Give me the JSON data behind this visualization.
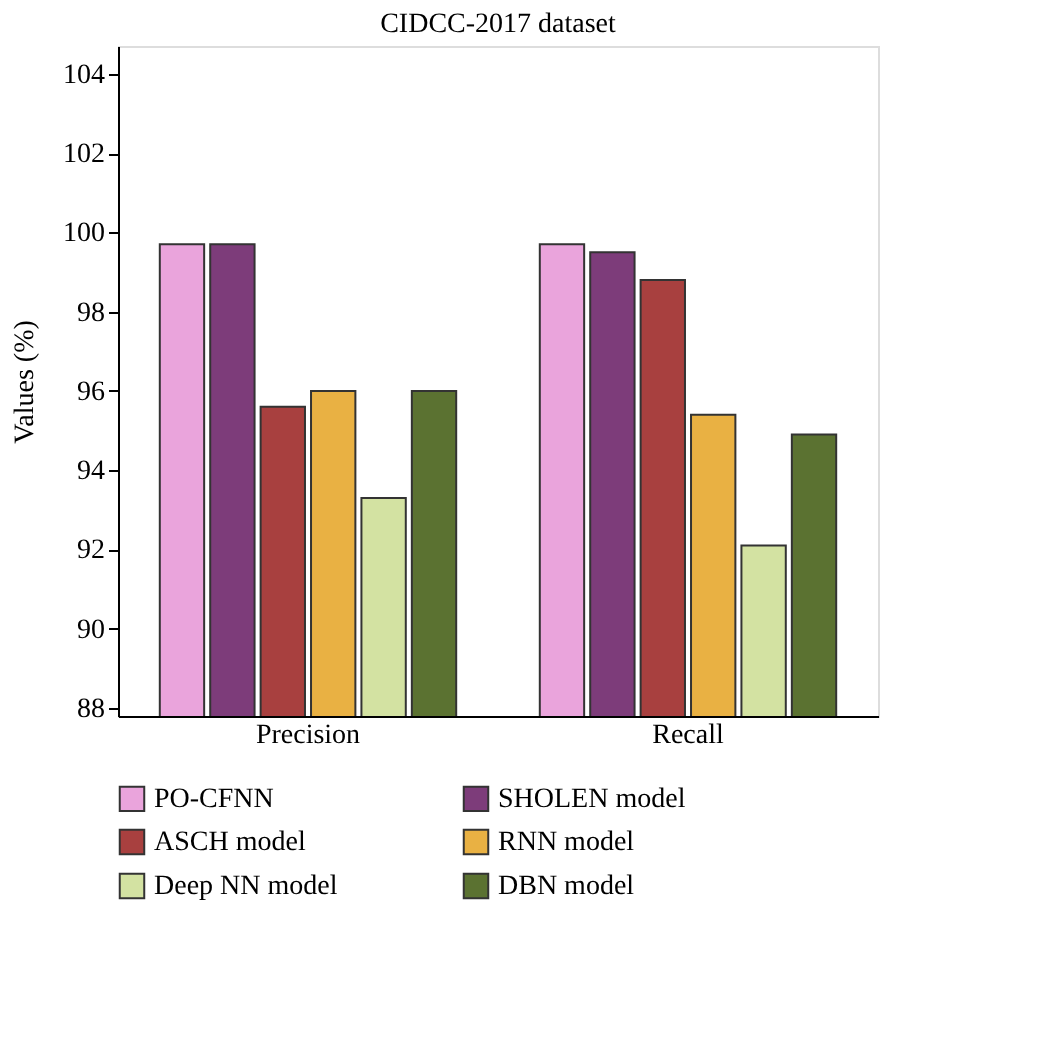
{
  "chart_data": {
    "type": "bar",
    "title": "CIDCC-2017 dataset",
    "ylabel": "Values (%)",
    "categories": [
      "Precision",
      "Recall"
    ],
    "series": [
      {
        "name": "PO-CFNN",
        "color": "#eaa4dc",
        "values": [
          99.7,
          99.7
        ]
      },
      {
        "name": "SHOLEN model",
        "color": "#7d3c7a",
        "values": [
          99.7,
          99.5
        ]
      },
      {
        "name": "ASCH model",
        "color": "#a8403f",
        "values": [
          95.6,
          98.8
        ]
      },
      {
        "name": "RNN model",
        "color": "#e9b143",
        "values": [
          96.0,
          95.4
        ]
      },
      {
        "name": "Deep NN model",
        "color": "#d3e2a2",
        "values": [
          93.3,
          92.1
        ]
      },
      {
        "name": "DBN model",
        "color": "#5b7231",
        "values": [
          96.0,
          94.9
        ]
      }
    ],
    "ylim": [
      87.8,
      104.7
    ],
    "yticks": [
      88,
      90,
      92,
      94,
      96,
      98,
      100,
      102,
      104
    ],
    "grid": false,
    "legend": "bottom"
  }
}
